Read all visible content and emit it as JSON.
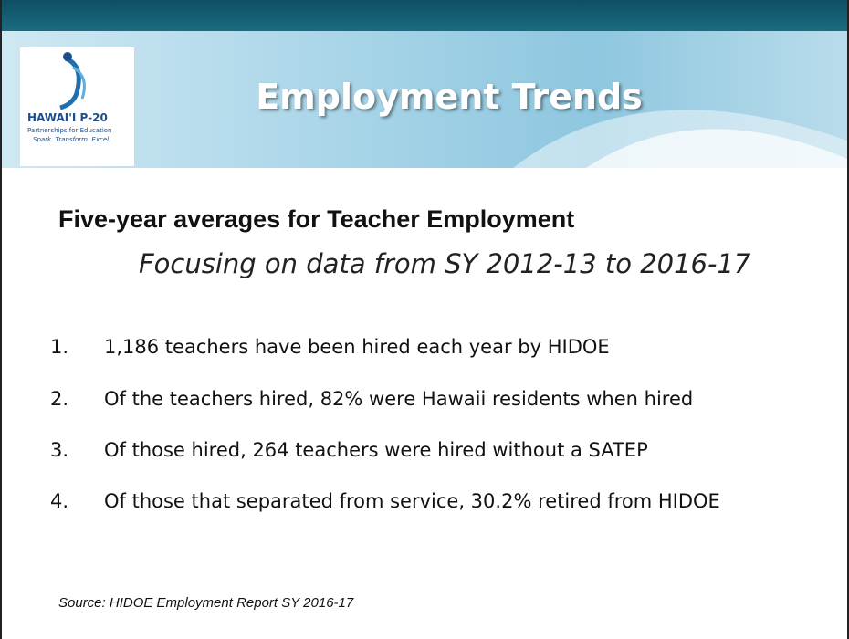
{
  "header": {
    "logo": {
      "name": "HAWAI'I P-20",
      "line1": "Partnerships for Education",
      "line2": "Spark. Transform. Excel."
    },
    "title": "Employment Trends"
  },
  "heading": "Five-year averages for Teacher Employment",
  "subheading": "Focusing on data from SY 2012-13 to 2016-17",
  "items": [
    {
      "number": "1.",
      "text": "1,186 teachers have been hired each year by HIDOE"
    },
    {
      "number": "2.",
      "text": "Of the teachers hired, 82% were Hawaii residents when hired"
    },
    {
      "number": "3.",
      "text": "Of those hired, 264 teachers were hired without a SATEP"
    },
    {
      "number": "4.",
      "text": "Of those that separated from service, 30.2% retired from HIDOE"
    }
  ],
  "source": "Source: HIDOE Employment Report SY 2016-17"
}
